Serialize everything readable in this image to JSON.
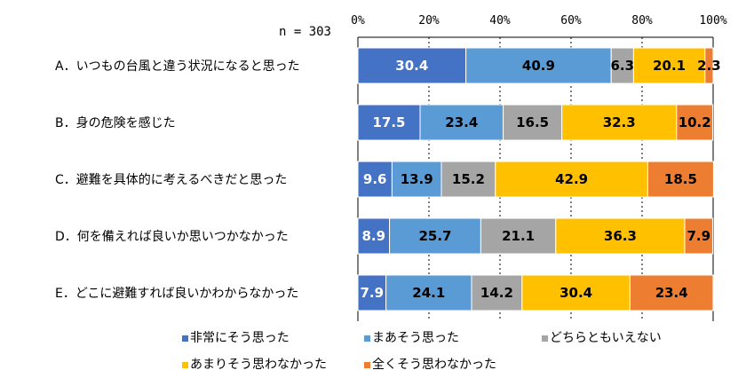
{
  "chart_data": {
    "type": "bar",
    "orientation": "horizontal",
    "stacked": true,
    "percent_axis": true,
    "sample_note": "n = 303",
    "xlim": [
      0,
      100
    ],
    "x_ticks": [
      "0%",
      "20%",
      "40%",
      "60%",
      "80%",
      "100%"
    ],
    "grid": true,
    "legend_position": "bottom",
    "categories": [
      "A．いつもの台風と違う状況になると思った",
      "B．身の危険を感じた",
      "C．避難を具体的に考えるべきだと思った",
      "D．何を備えれば良いか思いつかなかった",
      "E．どこに避難すれば良いかわからなかった"
    ],
    "series": [
      {
        "name": "非常にそう思った",
        "color": "#4472C4",
        "text_color": "#FFFFFF",
        "values": [
          30.4,
          17.5,
          9.6,
          8.9,
          7.9
        ]
      },
      {
        "name": "まあそう思った",
        "color": "#5B9BD5",
        "text_color": "#000000",
        "values": [
          40.9,
          23.4,
          13.9,
          25.7,
          24.1
        ]
      },
      {
        "name": "どちらともいえない",
        "color": "#A5A5A5",
        "text_color": "#000000",
        "values": [
          6.3,
          16.5,
          15.2,
          21.1,
          14.2
        ]
      },
      {
        "name": "あまりそう思わなかった",
        "color": "#FFC000",
        "text_color": "#000000",
        "values": [
          20.1,
          32.3,
          42.9,
          36.3,
          30.4
        ]
      },
      {
        "name": "全くそう思わなかった",
        "color": "#ED7D31",
        "text_color": "#000000",
        "values": [
          2.3,
          10.2,
          18.5,
          7.9,
          23.4
        ]
      }
    ]
  }
}
